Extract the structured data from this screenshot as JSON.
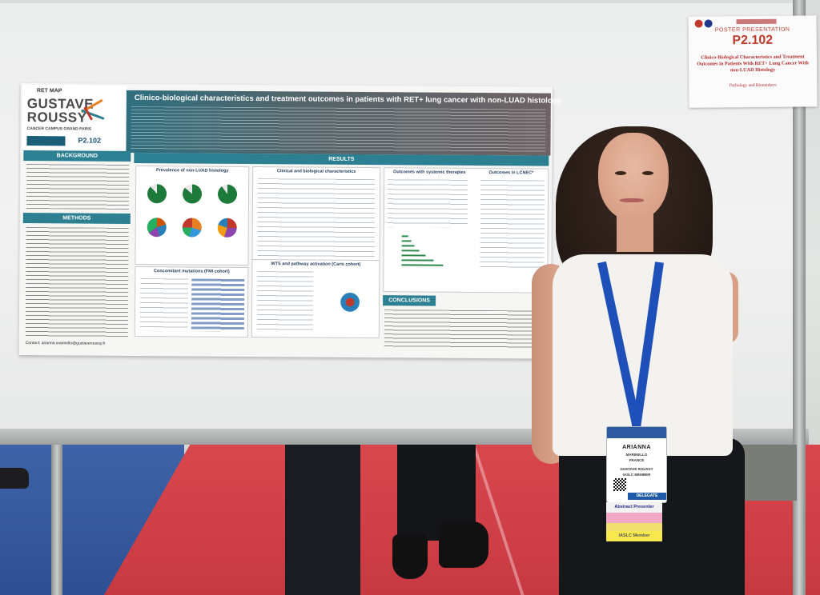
{
  "poster": {
    "logo_project": "RET MAP",
    "logo_line1": "GUSTAVE",
    "logo_line2": "ROUSSY",
    "logo_campus": "CANCER CAMPUS GRAND PARIS",
    "code": "P2.102",
    "title": "Clinico-biological characteristics and treatment outcomes in patients with RET+ lung cancer with non-LUAD histology",
    "sections": {
      "background": "BACKGROUND",
      "methods": "METHODS",
      "results": "RESULTS",
      "conclusions": "CONCLUSIONS"
    },
    "panels": {
      "prevalence": "Prevalence of non-LUAD histology",
      "clinical": "Clinical and biological characteristics",
      "outcomes_systemic": "Outcomes with systemic therapies",
      "outcomes_lcnec": "Outcomes in LCNEC*",
      "mutations": "Concomitant mutations (FMI cohort)",
      "wts": "WTS and pathway activation (Caris cohort)"
    },
    "contact": "Contact: arianna.marinello@gustaveroussy.fr"
  },
  "card": {
    "label": "POSTER PRESENTATION",
    "code": "P2.102",
    "title": "Clinico-Biological Characteristics and Treatment Outcomes in Patients With RET+ Lung Cancer With non-LUAD Histology",
    "track": "Pathology and Biomarkers"
  },
  "badge": {
    "name": "ARIANNA",
    "surname": "MARINELLO",
    "country": "FRANCE",
    "affiliation": "GUSTAVE ROUSSY",
    "membership": "IASLC MEMBER",
    "type": "DELEGATE"
  },
  "ribbons": [
    {
      "text": "Abstract Presenter",
      "color": "#f2f2f2",
      "text_color": "#2a2a8a"
    },
    {
      "text": "",
      "color": "#f4a8c8",
      "text_color": "#333"
    },
    {
      "text": "",
      "color": "#f0e070",
      "text_color": "#333"
    },
    {
      "text": "IASLC Member",
      "color": "#f6e84e",
      "text_color": "#555"
    }
  ],
  "colors": {
    "poster_accent": "#2d8091",
    "card_red": "#c0392b",
    "lanyard": "#1f4fb8",
    "floor_red": "#c73941",
    "floor_blue": "#2f4f93"
  }
}
